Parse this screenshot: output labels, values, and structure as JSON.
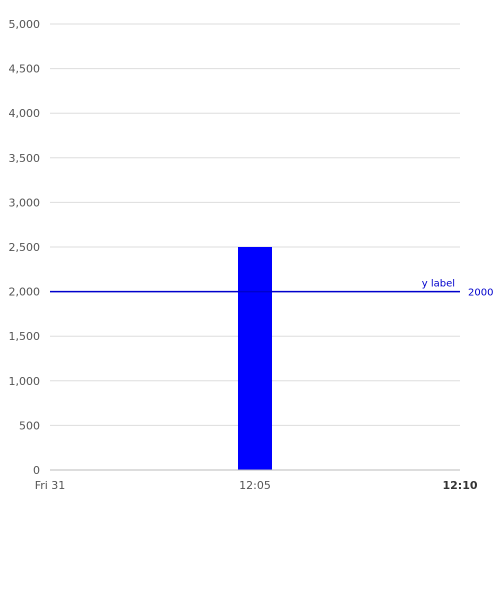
{
  "chart_data": {
    "type": "bar",
    "title": "",
    "xlabel": "",
    "ylabel": "",
    "x_ticks": [
      {
        "label": "Fri 31",
        "bold": false
      },
      {
        "label": "12:05",
        "bold": false
      },
      {
        "label": "12:10",
        "bold": true
      }
    ],
    "y_ticks": [
      "0",
      "500",
      "1,000",
      "1,500",
      "2,000",
      "2,500",
      "3,000",
      "3,500",
      "4,000",
      "4,500",
      "5,000"
    ],
    "ylim": [
      0,
      5000
    ],
    "grid": true,
    "bars": [
      {
        "x": "12:05",
        "value": 2500
      }
    ],
    "reference_line": {
      "value": 2000,
      "label": "y label",
      "value_label": "2000"
    },
    "colors": {
      "bar": "#0000ff",
      "reference_line": "#0000cc",
      "gridline": "#dddddd",
      "axis": "#bbbbbb",
      "tick_text": "#555555",
      "reference_text": "#0000cc"
    }
  }
}
